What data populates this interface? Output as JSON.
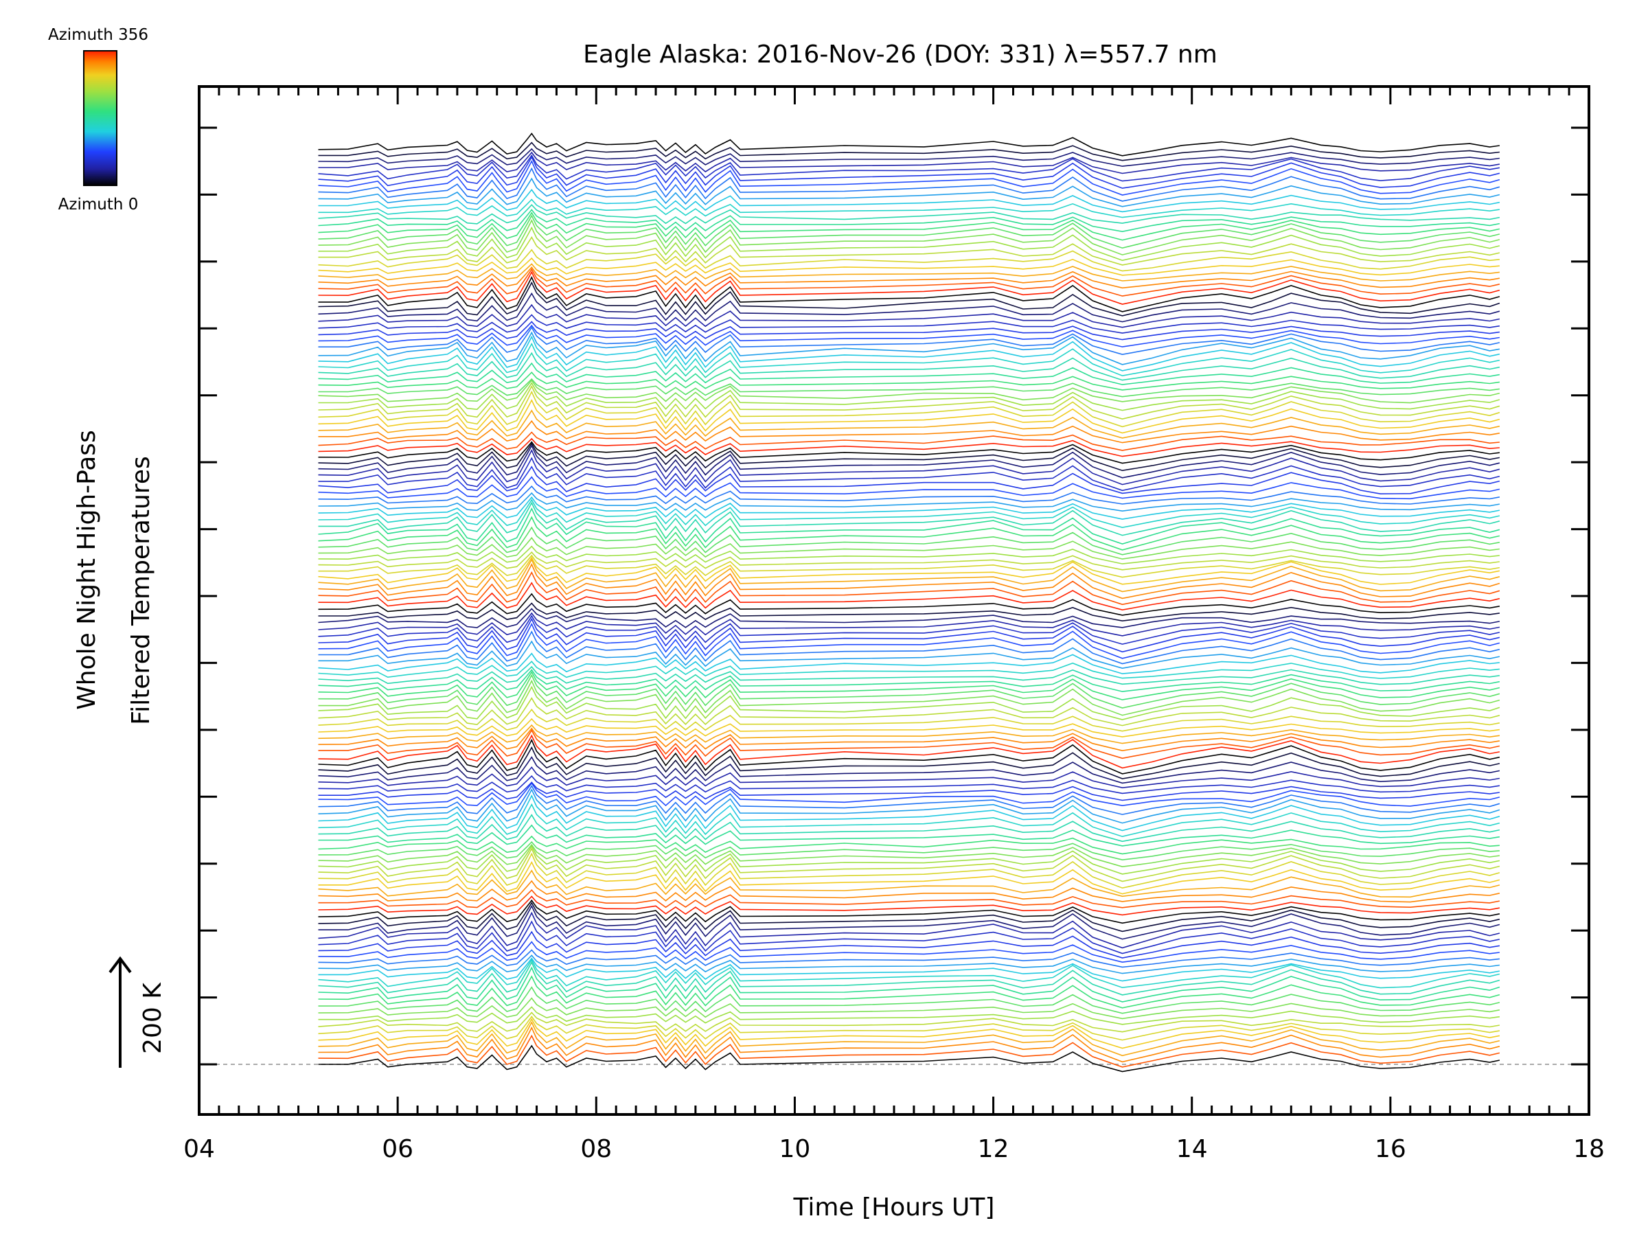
{
  "chart_data": {
    "type": "line",
    "title": "Eagle Alaska: 2016-Nov-26 (DOY: 331) λ=557.7 nm",
    "xlabel": "Time [Hours UT]",
    "ylabel_line1": "Whole Night High-Pass",
    "ylabel_line2": "Filtered Temperatures",
    "xlim": [
      4,
      18
    ],
    "x_ticks": [
      "04",
      "06",
      "08",
      "10",
      "12",
      "14",
      "16",
      "18"
    ],
    "y_tick_count": 15,
    "scale_bar_label": "200 K",
    "colorbar": {
      "top_label": "Azimuth 356",
      "bottom_label": "Azimuth 0"
    },
    "series_count": 144,
    "azimuth_range": [
      0,
      356
    ],
    "time_range": [
      5.2,
      17.1
    ],
    "profile_x": [
      5.2,
      5.5,
      5.8,
      5.9,
      6.1,
      6.5,
      6.6,
      6.7,
      6.8,
      6.95,
      7.0,
      7.1,
      7.2,
      7.3,
      7.35,
      7.4,
      7.5,
      7.6,
      7.7,
      7.9,
      8.1,
      8.4,
      8.6,
      8.7,
      8.8,
      8.9,
      9.0,
      9.1,
      9.2,
      9.35,
      9.45,
      10.5,
      11.3,
      12.0,
      12.3,
      12.6,
      12.8,
      13.0,
      13.3,
      13.6,
      13.9,
      14.3,
      14.6,
      14.8,
      15.0,
      15.3,
      15.5,
      15.7,
      15.9,
      16.2,
      16.5,
      16.8,
      17.0,
      17.1
    ],
    "profile_y": [
      0,
      0,
      10,
      -5,
      0,
      5,
      14,
      -5,
      -8,
      18,
      8,
      -10,
      -5,
      22,
      36,
      20,
      5,
      12,
      -5,
      12,
      6,
      8,
      16,
      -6,
      12,
      -8,
      10,
      -10,
      5,
      22,
      0,
      4,
      6,
      14,
      2,
      5,
      24,
      2,
      -14,
      -4,
      6,
      12,
      5,
      14,
      24,
      10,
      6,
      -4,
      -8,
      -6,
      4,
      10,
      4,
      8
    ]
  }
}
